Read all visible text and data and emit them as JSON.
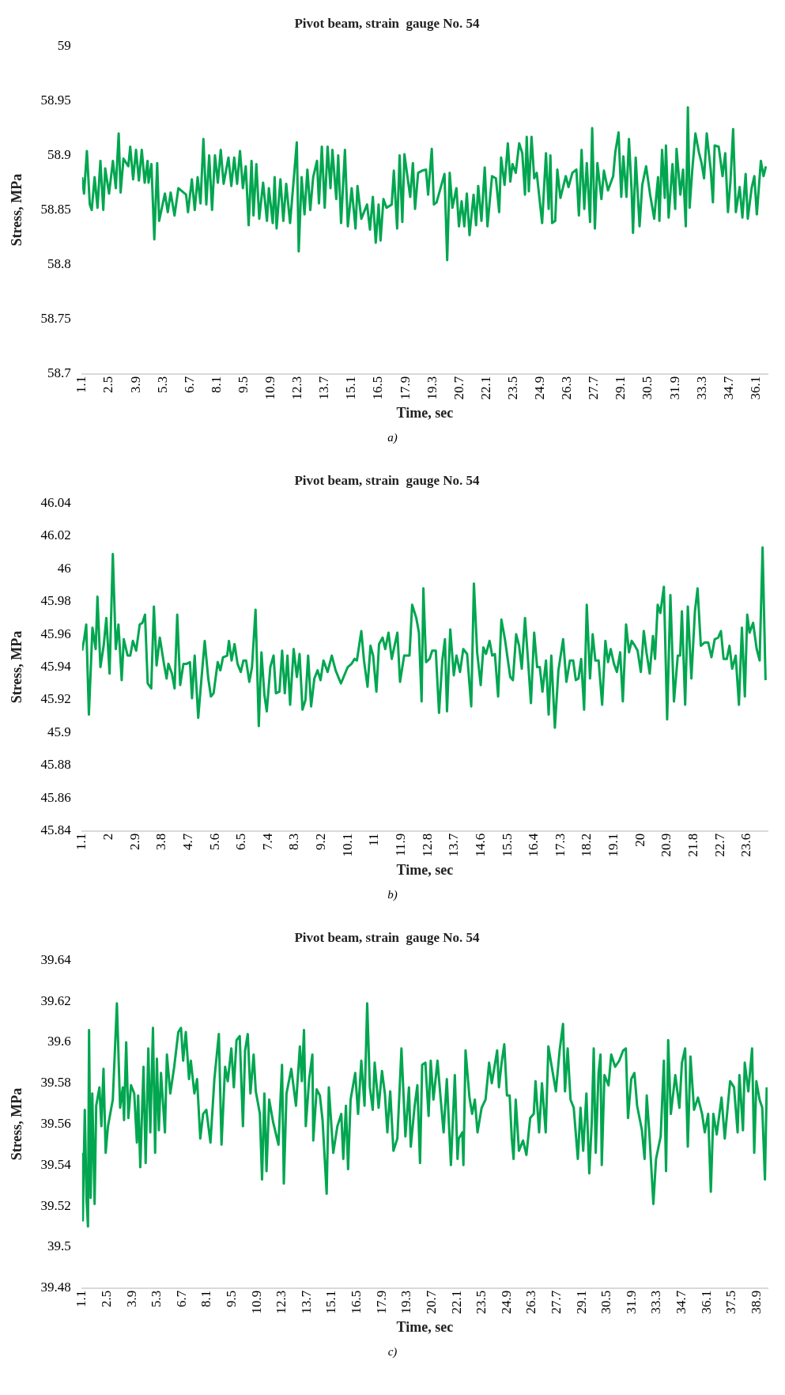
{
  "chart_data": [
    {
      "type": "line",
      "title": "Pivot beam, strain  gauge No. 54",
      "xlabel": "Time, sec",
      "ylabel": "Stress, MPa",
      "annotations": [
        "a)"
      ],
      "xlim": [
        1.1,
        36.7
      ],
      "ylim": [
        58.7,
        59
      ],
      "xticks": [
        1.1,
        2.5,
        3.9,
        5.3,
        6.7,
        8.1,
        9.5,
        10.9,
        12.3,
        13.7,
        15.1,
        16.5,
        17.9,
        19.3,
        20.7,
        22.1,
        23.5,
        24.9,
        26.3,
        27.7,
        29.1,
        30.5,
        31.9,
        33.3,
        34.7,
        36.1
      ],
      "yticks": [
        58.7,
        58.75,
        58.8,
        58.85,
        58.9,
        58.95,
        59
      ],
      "series": [
        {
          "color": "#00a650",
          "x": [
            1.1,
            1.2,
            1.35,
            1.5,
            1.6,
            1.75,
            1.9,
            2.05,
            2.2,
            2.3,
            2.5,
            2.7,
            2.85,
            3.0,
            3.1,
            3.25,
            3.5,
            3.6,
            3.75,
            3.9,
            4.05,
            4.2,
            4.35,
            4.5,
            4.55,
            4.7,
            4.85,
            5.0,
            5.1,
            5.4,
            5.55,
            5.7,
            5.9,
            6.1,
            6.5,
            6.6,
            6.8,
            6.95,
            7.1,
            7.25,
            7.4,
            7.55,
            7.7,
            7.85,
            8.0,
            8.15,
            8.3,
            8.45,
            8.7,
            8.85,
            9.0,
            9.15,
            9.3,
            9.45,
            9.6,
            9.75,
            9.9,
            10.0,
            10.15,
            10.3,
            10.5,
            10.7,
            10.8,
            11.0,
            11.1,
            11.2,
            11.4,
            11.55,
            11.7,
            11.9,
            12.1,
            12.25,
            12.35,
            12.5,
            12.65,
            12.8,
            12.95,
            13.1,
            13.3,
            13.4,
            13.55,
            13.7,
            13.85,
            14.0,
            14.1,
            14.3,
            14.4,
            14.55,
            14.75,
            14.9,
            15.1,
            15.3,
            15.4,
            15.6,
            15.9,
            16.05,
            16.2,
            16.35,
            16.5,
            16.6,
            16.75,
            16.91,
            17.18,
            17.29,
            17.46,
            17.59,
            17.73,
            17.84,
            18.14,
            18.28,
            18.39,
            18.55,
            18.76,
            18.96,
            19.07,
            19.26,
            19.37,
            19.51,
            19.92,
            20.06,
            20.19,
            20.33,
            20.54,
            20.67,
            20.81,
            20.95,
            21.08,
            21.22,
            21.43,
            21.56,
            21.67,
            21.84,
            22.01,
            22.15,
            22.39,
            22.59,
            22.76,
            22.86,
            23.04,
            23.21,
            23.34,
            23.45,
            23.62,
            23.8,
            23.96,
            24.1,
            24.19,
            24.3,
            24.44,
            24.58,
            24.71,
            24.99,
            25.19,
            25.33,
            25.42,
            25.51,
            25.67,
            25.78,
            25.94,
            26.22,
            26.36,
            26.56,
            26.77,
            26.9,
            27.04,
            27.18,
            27.31,
            27.48,
            27.59,
            27.73,
            27.86,
            28.07,
            28.2,
            28.41,
            28.68,
            28.79,
            28.96,
            29.1,
            29.21,
            29.37,
            29.5,
            29.64,
            29.71,
            29.85,
            30.05,
            30.19,
            30.39,
            30.6,
            30.81,
            31.01,
            31.08,
            31.22,
            31.36,
            31.42,
            31.56,
            31.76,
            31.9,
            31.97,
            32.17,
            32.31,
            32.45,
            32.56,
            32.65,
            32.79,
            32.95,
            33.13,
            33.27,
            33.4,
            33.54,
            33.75,
            33.86,
            33.95,
            34.16,
            34.36,
            34.5,
            34.64,
            34.77,
            34.91,
            35.05,
            35.25,
            35.39,
            35.56,
            35.67,
            35.87,
            36.01,
            36.14,
            36.35,
            36.49,
            36.61
          ],
          "values": [
            58.88,
            58.865,
            58.904,
            58.855,
            58.85,
            58.88,
            58.852,
            58.895,
            58.85,
            58.888,
            58.865,
            58.895,
            58.87,
            58.92,
            58.866,
            58.897,
            58.89,
            58.908,
            58.878,
            58.905,
            58.877,
            58.905,
            58.875,
            58.895,
            58.875,
            58.892,
            58.823,
            58.893,
            58.84,
            58.865,
            58.848,
            58.866,
            58.845,
            58.87,
            58.864,
            58.848,
            58.878,
            58.85,
            58.88,
            58.856,
            58.915,
            58.855,
            58.9,
            58.85,
            58.9,
            58.875,
            58.905,
            58.874,
            58.898,
            58.872,
            58.898,
            58.874,
            58.904,
            58.87,
            58.89,
            58.836,
            58.895,
            58.845,
            58.892,
            58.842,
            58.875,
            58.84,
            58.87,
            58.838,
            58.88,
            58.833,
            58.878,
            58.84,
            58.874,
            58.838,
            58.88,
            58.912,
            58.812,
            58.88,
            58.846,
            58.887,
            58.85,
            58.88,
            58.895,
            58.856,
            58.908,
            58.852,
            58.908,
            58.87,
            58.905,
            58.86,
            58.9,
            58.838,
            58.905,
            58.835,
            58.87,
            58.833,
            58.872,
            58.842,
            58.855,
            58.832,
            58.862,
            58.82,
            58.855,
            58.822,
            58.86,
            58.852,
            58.855,
            58.886,
            58.833,
            58.9,
            58.839,
            58.901,
            58.862,
            58.893,
            58.851,
            58.884,
            58.886,
            58.887,
            58.864,
            58.906,
            58.855,
            58.857,
            58.883,
            58.804,
            58.884,
            58.852,
            58.87,
            58.835,
            58.858,
            58.835,
            58.865,
            58.827,
            58.864,
            58.836,
            58.872,
            58.84,
            58.889,
            58.835,
            58.881,
            58.879,
            58.848,
            58.898,
            58.873,
            58.911,
            58.876,
            58.892,
            58.884,
            58.911,
            58.902,
            58.864,
            58.917,
            58.867,
            58.917,
            58.879,
            58.884,
            58.838,
            58.902,
            58.851,
            58.9,
            58.838,
            58.84,
            58.887,
            58.861,
            58.881,
            58.871,
            58.884,
            58.887,
            58.845,
            58.905,
            58.851,
            58.893,
            58.839,
            58.925,
            58.833,
            58.893,
            58.86,
            58.886,
            58.868,
            58.881,
            58.903,
            58.921,
            58.862,
            58.899,
            58.862,
            58.915,
            58.867,
            58.829,
            58.898,
            58.835,
            58.873,
            58.89,
            58.864,
            58.842,
            58.88,
            58.84,
            58.905,
            58.861,
            58.909,
            58.843,
            58.892,
            58.851,
            58.906,
            58.864,
            58.887,
            58.835,
            58.944,
            58.852,
            58.887,
            58.92,
            58.903,
            58.893,
            58.879,
            58.92,
            58.886,
            58.857,
            58.909,
            58.908,
            58.881,
            58.902,
            58.848,
            58.876,
            58.924,
            58.848,
            58.871,
            58.843,
            58.883,
            58.842,
            58.87,
            58.881,
            58.846,
            58.895,
            58.881,
            58.89
          ]
        }
      ]
    },
    {
      "type": "line",
      "title": "Pivot beam, strain  gauge No. 54",
      "xlabel": "Time, sec",
      "ylabel": "Stress, MPa",
      "annotations": [
        "b)"
      ],
      "xlim": [
        1.1,
        24.3
      ],
      "ylim": [
        45.84,
        46.04
      ],
      "xticks": [
        1.1,
        2,
        2.9,
        3.8,
        4.7,
        5.6,
        6.5,
        7.4,
        8.3,
        9.2,
        10.1,
        11,
        11.9,
        12.8,
        13.7,
        14.6,
        15.5,
        16.4,
        17.3,
        18.2,
        19.1,
        20,
        20.9,
        21.8,
        22.7,
        23.6
      ],
      "yticks": [
        45.84,
        45.86,
        45.88,
        45.9,
        45.92,
        45.94,
        45.96,
        45.98,
        46,
        46.02,
        46.04
      ],
      "series": [
        {
          "color": "#00a650",
          "x": [
            1.1,
            1.17,
            1.24,
            1.33,
            1.45,
            1.56,
            1.62,
            1.72,
            1.83,
            1.92,
            2.03,
            2.14,
            2.24,
            2.33,
            2.44,
            2.51,
            2.64,
            2.73,
            2.82,
            2.93,
            3.05,
            3.14,
            3.23,
            3.32,
            3.44,
            3.53,
            3.62,
            3.73,
            3.87,
            3.96,
            4.02,
            4.14,
            4.23,
            4.32,
            4.42,
            4.53,
            4.64,
            4.75,
            4.82,
            4.91,
            5.03,
            5.14,
            5.25,
            5.37,
            5.46,
            5.55,
            5.69,
            5.78,
            5.87,
            6.01,
            6.07,
            6.16,
            6.26,
            6.36,
            6.47,
            6.56,
            6.65,
            6.76,
            6.85,
            6.97,
            7.08,
            7.17,
            7.27,
            7.35,
            7.47,
            7.58,
            7.66,
            7.78,
            7.87,
            7.96,
            8.05,
            8.14,
            8.26,
            8.37,
            8.46,
            8.56,
            8.66,
            8.75,
            8.85,
            8.96,
            9.07,
            9.17,
            9.27,
            9.41,
            9.55,
            9.68,
            9.86,
            10.09,
            10.22,
            10.32,
            10.4,
            10.55,
            10.64,
            10.76,
            10.86,
            10.95,
            11.06,
            11.15,
            11.27,
            11.36,
            11.47,
            11.58,
            11.77,
            11.86,
            12.0,
            12.18,
            12.27,
            12.41,
            12.5,
            12.59,
            12.65,
            12.74,
            12.86,
            12.95,
            13.07,
            13.18,
            13.29,
            13.38,
            13.45,
            13.56,
            13.68,
            13.77,
            13.89,
            14.0,
            14.13,
            14.27,
            14.36,
            14.47,
            14.59,
            14.68,
            14.77,
            14.89,
            14.98,
            15.07,
            15.18,
            15.29,
            15.41,
            15.59,
            15.68,
            15.79,
            15.89,
            15.98,
            16.09,
            16.2,
            16.29,
            16.4,
            16.5,
            16.59,
            16.68,
            16.8,
            16.89,
            16.98,
            17.1,
            17.22,
            17.38,
            17.49,
            17.61,
            17.72,
            17.81,
            17.9,
            17.99,
            18.09,
            18.18,
            18.29,
            18.38,
            18.47,
            18.58,
            18.7,
            18.81,
            18.9,
            18.99,
            19.1,
            19.2,
            19.31,
            19.4,
            19.51,
            19.61,
            19.7,
            19.81,
            19.9,
            20.01,
            20.11,
            20.2,
            20.31,
            20.42,
            20.49,
            20.58,
            20.67,
            20.79,
            20.9,
            21.01,
            21.13,
            21.26,
            21.34,
            21.4,
            21.51,
            21.6,
            21.72,
            21.84,
            21.93,
            22.04,
            22.17,
            22.29,
            22.4,
            22.51,
            22.63,
            22.72,
            22.81,
            22.92,
            23.01,
            23.1,
            23.22,
            23.33,
            23.43,
            23.53,
            23.61,
            23.69,
            23.81,
            23.93,
            24.03,
            24.13,
            24.23
          ],
          "values": [
            45.95,
            45.957,
            45.966,
            45.911,
            45.964,
            45.951,
            45.983,
            45.94,
            45.953,
            45.97,
            45.936,
            46.009,
            45.951,
            45.966,
            45.932,
            45.957,
            45.947,
            45.947,
            45.956,
            45.95,
            45.966,
            45.967,
            45.972,
            45.93,
            45.927,
            45.977,
            45.941,
            45.958,
            45.942,
            45.933,
            45.942,
            45.936,
            45.927,
            45.972,
            45.929,
            45.942,
            45.942,
            45.943,
            45.921,
            45.947,
            45.909,
            45.933,
            45.956,
            45.933,
            45.922,
            45.924,
            45.943,
            45.938,
            45.946,
            45.947,
            45.956,
            45.944,
            45.954,
            45.942,
            45.937,
            45.944,
            45.944,
            45.931,
            45.94,
            45.975,
            45.904,
            45.949,
            45.923,
            45.913,
            45.94,
            45.947,
            45.924,
            45.925,
            45.95,
            45.924,
            45.947,
            45.917,
            45.951,
            45.934,
            45.948,
            45.914,
            45.92,
            45.947,
            45.916,
            45.933,
            45.938,
            45.932,
            45.944,
            45.937,
            45.947,
            45.938,
            45.93,
            45.94,
            45.942,
            45.945,
            45.944,
            45.962,
            45.944,
            45.928,
            45.953,
            45.947,
            45.925,
            45.954,
            45.958,
            45.951,
            45.961,
            45.945,
            45.961,
            45.931,
            45.947,
            45.947,
            45.978,
            45.97,
            45.961,
            45.919,
            45.988,
            45.943,
            45.945,
            45.95,
            45.95,
            45.912,
            45.944,
            45.957,
            45.913,
            45.963,
            45.935,
            45.947,
            45.937,
            45.951,
            45.948,
            45.916,
            45.991,
            45.949,
            45.929,
            45.952,
            45.948,
            45.956,
            45.947,
            45.948,
            45.922,
            45.969,
            45.957,
            45.934,
            45.932,
            45.96,
            45.953,
            45.939,
            45.97,
            45.942,
            45.918,
            45.961,
            45.94,
            45.94,
            45.925,
            45.944,
            45.911,
            45.947,
            45.903,
            45.938,
            45.957,
            45.931,
            45.944,
            45.944,
            45.932,
            45.933,
            45.945,
            45.914,
            45.978,
            45.933,
            45.96,
            45.944,
            45.944,
            45.917,
            45.956,
            45.943,
            45.951,
            45.942,
            45.937,
            45.949,
            45.919,
            45.966,
            45.949,
            45.956,
            45.953,
            45.95,
            45.937,
            45.962,
            45.949,
            45.936,
            45.959,
            45.945,
            45.978,
            45.973,
            45.989,
            45.908,
            45.984,
            45.919,
            45.947,
            45.947,
            45.974,
            45.917,
            45.977,
            45.933,
            45.974,
            45.988,
            45.953,
            45.955,
            45.955,
            45.946,
            45.957,
            45.958,
            45.962,
            45.945,
            45.945,
            45.953,
            45.939,
            45.947,
            45.917,
            45.964,
            45.922,
            45.972,
            45.961,
            45.967,
            45.951,
            45.944,
            46.013,
            45.932
          ]
        }
      ]
    },
    {
      "type": "line",
      "title": "Pivot beam, strain  gauge No. 54",
      "xlabel": "Time, sec",
      "ylabel": "Stress, MPa",
      "annotations": [
        "c)"
      ],
      "xlim": [
        1.1,
        39.5
      ],
      "ylim": [
        39.48,
        39.64
      ],
      "xticks": [
        1.1,
        2.5,
        3.9,
        5.3,
        6.7,
        8.1,
        9.5,
        10.9,
        12.3,
        13.7,
        15.1,
        16.5,
        17.9,
        19.3,
        20.7,
        22.1,
        23.5,
        24.9,
        26.3,
        27.7,
        29.1,
        30.5,
        31.9,
        33.3,
        34.7,
        36.1,
        37.5,
        38.9
      ],
      "yticks": [
        39.48,
        39.5,
        39.52,
        39.54,
        39.56,
        39.58,
        39.6,
        39.62,
        39.64
      ],
      "series": [
        {
          "color": "#00a650",
          "x": [
            1.1,
            1.14,
            1.25,
            1.35,
            1.43,
            1.49,
            1.58,
            1.67,
            1.8,
            1.89,
            2.07,
            2.18,
            2.3,
            2.42,
            2.55,
            2.82,
            3.05,
            3.23,
            3.38,
            3.45,
            3.57,
            3.69,
            3.84,
            4.02,
            4.17,
            4.24,
            4.36,
            4.54,
            4.66,
            4.81,
            4.92,
            5.07,
            5.19,
            5.29,
            5.4,
            5.52,
            5.74,
            5.85,
            6.04,
            6.26,
            6.49,
            6.64,
            6.76,
            6.91,
            7.09,
            7.19,
            7.39,
            7.54,
            7.72,
            7.88,
            8.06,
            8.29,
            8.51,
            8.76,
            8.91,
            9.11,
            9.26,
            9.46,
            9.6,
            9.75,
            9.93,
            10.11,
            10.23,
            10.38,
            10.53,
            10.71,
            10.83,
            11.06,
            11.18,
            11.31,
            11.43,
            11.58,
            11.8,
            12.1,
            12.3,
            12.4,
            12.55,
            12.82,
            13.08,
            13.3,
            13.41,
            13.53,
            13.63,
            13.82,
            14.0,
            14.05,
            14.24,
            14.42,
            14.57,
            14.8,
            14.92,
            15.02,
            15.17,
            15.4,
            15.62,
            15.73,
            15.88,
            16.0,
            16.14,
            16.4,
            16.56,
            16.74,
            16.92,
            17.07,
            17.22,
            17.38,
            17.49,
            17.71,
            17.9,
            18.06,
            18.2,
            18.36,
            18.54,
            18.76,
            18.99,
            19.21,
            19.41,
            19.51,
            19.73,
            19.88,
            20.03,
            20.15,
            20.33,
            20.51,
            20.63,
            20.78,
            21.01,
            21.16,
            21.35,
            21.53,
            21.76,
            21.98,
            22.13,
            22.2,
            22.4,
            22.46,
            22.58,
            22.8,
            22.95,
            23.1,
            23.25,
            23.48,
            23.7,
            23.9,
            24.05,
            24.35,
            24.45,
            24.6,
            24.75,
            24.9,
            25.05,
            25.17,
            25.27,
            25.39,
            25.57,
            25.8,
            25.99,
            26.2,
            26.4,
            26.5,
            26.7,
            26.86,
            27.07,
            27.22,
            27.37,
            27.64,
            27.85,
            28.04,
            28.15,
            28.3,
            28.46,
            28.64,
            28.87,
            29.02,
            29.17,
            29.35,
            29.51,
            29.65,
            29.76,
            29.87,
            30.03,
            30.14,
            30.21,
            30.36,
            30.59,
            30.74,
            30.96,
            31.19,
            31.41,
            31.56,
            31.68,
            31.86,
            32.04,
            32.19,
            32.46,
            32.61,
            32.73,
            32.88,
            33.1,
            33.25,
            33.51,
            33.69,
            33.81,
            33.93,
            34.08,
            34.33,
            34.56,
            34.7,
            34.88,
            35.03,
            35.18,
            35.38,
            35.6,
            35.83,
            35.98,
            36.17,
            36.32,
            36.46,
            36.65,
            36.92,
            37.1,
            37.4,
            37.62,
            37.82,
            37.92,
            38.12,
            38.22,
            38.42,
            38.63,
            38.75,
            38.87,
            39.05,
            39.2,
            39.35,
            39.45
          ],
          "values": [
            39.546,
            39.513,
            39.567,
            39.523,
            39.51,
            39.606,
            39.524,
            39.575,
            39.521,
            39.569,
            39.578,
            39.559,
            39.587,
            39.546,
            39.559,
            39.572,
            39.619,
            39.568,
            39.578,
            39.562,
            39.6,
            39.563,
            39.579,
            39.575,
            39.551,
            39.574,
            39.539,
            39.588,
            39.541,
            39.597,
            39.556,
            39.607,
            39.546,
            39.592,
            39.557,
            39.585,
            39.556,
            39.594,
            39.575,
            39.588,
            39.605,
            39.607,
            39.591,
            39.605,
            39.582,
            39.591,
            39.575,
            39.582,
            39.553,
            39.565,
            39.567,
            39.551,
            39.582,
            39.604,
            39.55,
            39.588,
            39.581,
            39.597,
            39.578,
            39.601,
            39.603,
            39.559,
            39.596,
            39.604,
            39.575,
            39.594,
            39.576,
            39.565,
            39.533,
            39.575,
            39.537,
            39.572,
            39.561,
            39.55,
            39.589,
            39.531,
            39.575,
            39.587,
            39.569,
            39.598,
            39.581,
            39.606,
            39.559,
            39.582,
            39.594,
            39.552,
            39.577,
            39.574,
            39.562,
            39.526,
            39.578,
            39.565,
            39.546,
            39.559,
            39.565,
            39.543,
            39.569,
            39.538,
            39.572,
            39.585,
            39.565,
            39.591,
            39.569,
            39.619,
            39.578,
            39.567,
            39.59,
            39.568,
            39.586,
            39.575,
            39.556,
            39.576,
            39.547,
            39.553,
            39.597,
            39.554,
            39.578,
            39.549,
            39.569,
            39.579,
            39.541,
            39.589,
            39.59,
            39.564,
            39.591,
            39.572,
            39.591,
            39.575,
            39.556,
            39.582,
            39.54,
            39.584,
            39.543,
            39.553,
            39.556,
            39.54,
            39.596,
            39.573,
            39.565,
            39.572,
            39.556,
            39.568,
            39.572,
            39.59,
            39.58,
            39.596,
            39.578,
            39.59,
            39.599,
            39.574,
            39.574,
            39.553,
            39.543,
            39.572,
            39.547,
            39.552,
            39.545,
            39.563,
            39.565,
            39.581,
            39.556,
            39.58,
            39.556,
            39.598,
            39.59,
            39.576,
            39.596,
            39.609,
            39.576,
            39.597,
            39.572,
            39.568,
            39.543,
            39.568,
            39.547,
            39.575,
            39.536,
            39.561,
            39.597,
            39.546,
            39.585,
            39.594,
            39.54,
            39.584,
            39.579,
            39.594,
            39.588,
            39.591,
            39.596,
            39.597,
            39.563,
            39.582,
            39.585,
            39.569,
            39.557,
            39.543,
            39.574,
            39.555,
            39.521,
            39.543,
            39.554,
            39.591,
            39.537,
            39.601,
            39.565,
            39.584,
            39.568,
            39.59,
            39.597,
            39.549,
            39.593,
            39.567,
            39.573,
            39.565,
            39.556,
            39.565,
            39.527,
            39.565,
            39.555,
            39.573,
            39.553,
            39.581,
            39.578,
            39.556,
            39.584,
            39.557,
            39.59,
            39.576,
            39.597,
            39.546,
            39.581,
            39.572,
            39.568,
            39.533,
            39.578
          ]
        }
      ]
    }
  ]
}
